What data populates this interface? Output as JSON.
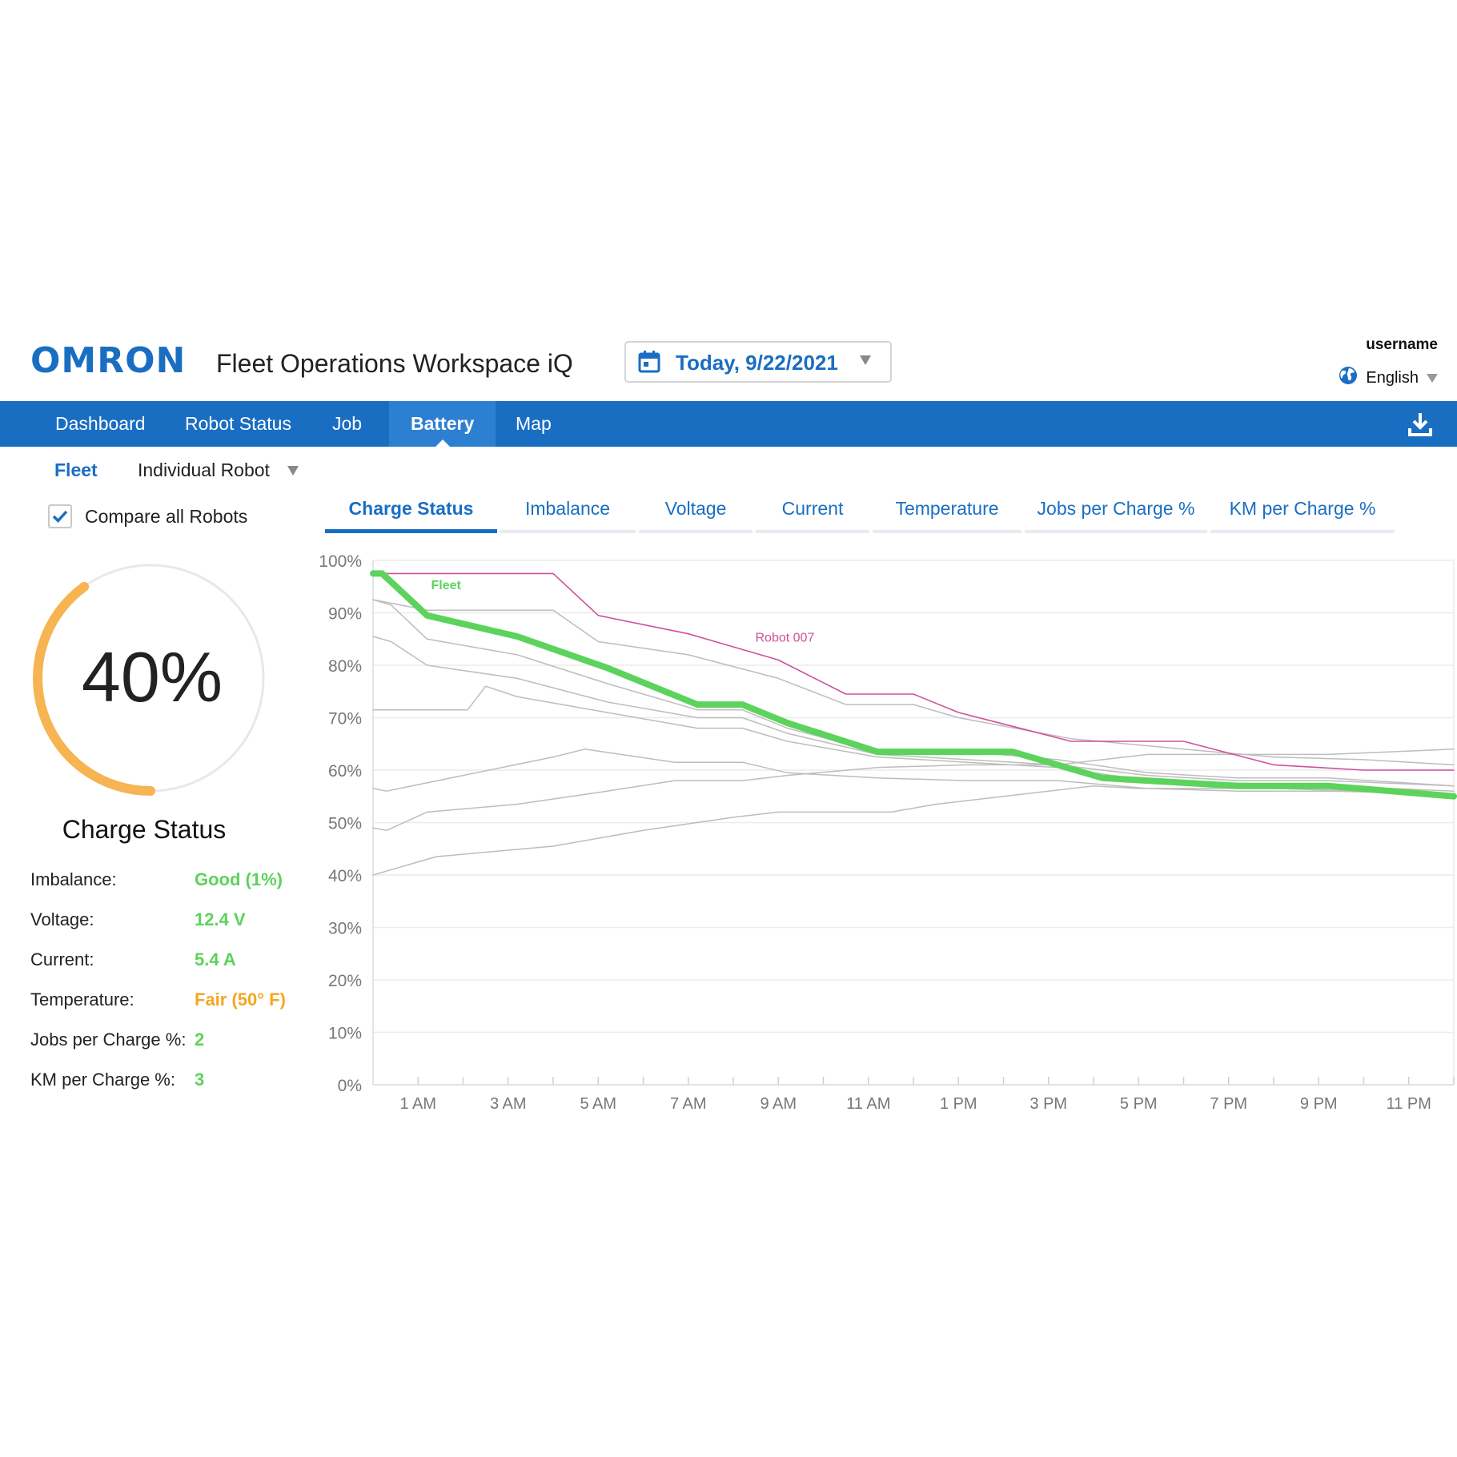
{
  "header": {
    "logo": "OMRON",
    "app_title": "Fleet Operations Workspace iQ",
    "date": "Today, 9/22/2021",
    "username": "username",
    "language": "English"
  },
  "nav": {
    "items": [
      "Dashboard",
      "Robot Status",
      "Job",
      "Battery",
      "Map"
    ],
    "active": "Battery"
  },
  "scope": {
    "fleet": "Fleet",
    "individual": "Individual Robot"
  },
  "compare": {
    "label": "Compare all Robots",
    "checked": true
  },
  "metric_tabs": {
    "items": [
      "Charge Status",
      "Imbalance",
      "Voltage",
      "Current",
      "Temperature",
      "Jobs per Charge %",
      "KM per Charge %"
    ],
    "active": "Charge Status"
  },
  "gauge": {
    "value": "40%",
    "fraction": 0.4,
    "label": "Charge Status",
    "color": "#f7b452"
  },
  "stats": [
    {
      "label": "Imbalance:",
      "value": "Good (1%)",
      "color": "#5cd35c"
    },
    {
      "label": "Voltage:",
      "value": "12.4 V",
      "color": "#5cd35c"
    },
    {
      "label": "Current:",
      "value": "5.4 A",
      "color": "#5cd35c"
    },
    {
      "label": "Temperature:",
      "value": "Fair (50° F)",
      "color": "#f5a623"
    },
    {
      "label": "Jobs per Charge %:",
      "value": "2",
      "color": "#5cd35c"
    },
    {
      "label": "KM per Charge %:",
      "value": "3",
      "color": "#5cd35c"
    }
  ],
  "colors": {
    "brand": "#1a6ec2",
    "fleet": "#5cd35c",
    "highlight": "#d0509a",
    "other": "#bdbdbd"
  },
  "chart_data": {
    "type": "line",
    "ylim": [
      0,
      100
    ],
    "xlim": [
      0,
      24
    ],
    "y_ticks": [
      "0%",
      "10%",
      "20%",
      "30%",
      "40%",
      "50%",
      "60%",
      "70%",
      "80%",
      "90%",
      "100%"
    ],
    "x_ticks": [
      "1 AM",
      "3 AM",
      "5 AM",
      "7 AM",
      "9 AM",
      "11 AM",
      "1 PM",
      "3 PM",
      "5 PM",
      "7 PM",
      "9 PM",
      "11 PM"
    ],
    "x_tick_hours": [
      1,
      3,
      5,
      7,
      9,
      11,
      13,
      15,
      17,
      19,
      21,
      23
    ],
    "grid": true,
    "series": [
      {
        "name": "Fleet",
        "role": "fleet",
        "x": [
          0,
          0.2,
          1.2,
          3.2,
          5.2,
          7.2,
          8.2,
          9.2,
          11.2,
          12.2,
          14.2,
          16.2,
          17.2,
          19.2,
          21.2,
          24
        ],
        "y": [
          97.5,
          97.5,
          89.5,
          85.5,
          79.5,
          72.5,
          72.5,
          69,
          63.5,
          63.5,
          63.5,
          58.5,
          58,
          57,
          57,
          55
        ]
      },
      {
        "name": "Robot 007",
        "role": "highlight",
        "x": [
          0.2,
          1.2,
          4.0,
          5.0,
          7.0,
          9.0,
          10.5,
          12.0,
          13.0,
          15.5,
          18.0,
          20.0,
          22.0,
          24.0
        ],
        "y": [
          97.5,
          97.5,
          97.5,
          89.5,
          86,
          81,
          74.5,
          74.5,
          71,
          65.5,
          65.5,
          61,
          60,
          60
        ]
      },
      {
        "role": "other",
        "x": [
          0,
          1.2,
          4.0,
          5.0,
          7.0,
          9.0,
          10.5,
          12.0,
          13.0,
          15.5,
          18.0,
          20.0,
          22.0,
          24.0
        ],
        "y": [
          92.5,
          90.5,
          90.5,
          84.5,
          82,
          77.5,
          72.5,
          72.5,
          70,
          66,
          64,
          62.5,
          62,
          61
        ]
      },
      {
        "role": "other",
        "x": [
          0,
          0.4,
          1.2,
          3.2,
          5.2,
          7.2,
          8.2,
          9.2,
          11.2,
          13.2,
          15.2,
          17.2,
          19.2,
          21.2,
          24
        ],
        "y": [
          92.5,
          91.5,
          85,
          82,
          76.5,
          71.5,
          71.5,
          68,
          63.5,
          63.5,
          62,
          59.5,
          58.5,
          58.5,
          57
        ]
      },
      {
        "role": "other",
        "x": [
          0,
          0.4,
          1.2,
          3.2,
          5.2,
          7.2,
          8.2,
          9.2,
          11.2,
          13.2,
          15.2,
          17.2,
          19.2,
          21.2,
          24
        ],
        "y": [
          85.5,
          84.5,
          80,
          77.5,
          73,
          70,
          70,
          67,
          63,
          62,
          61,
          59,
          58,
          58,
          57
        ]
      },
      {
        "role": "other",
        "x": [
          0,
          2.1,
          2.5,
          3.2,
          5.2,
          7.2,
          8.2,
          9.2,
          11.2,
          13.2,
          15.2,
          17.2,
          19.2,
          21.2,
          24
        ],
        "y": [
          71.5,
          71.5,
          76,
          74,
          71,
          68,
          68,
          65.5,
          62.5,
          61.5,
          60.5,
          58,
          57.5,
          57,
          56
        ]
      },
      {
        "role": "other",
        "x": [
          0,
          0.3,
          2.0,
          4.0,
          4.7,
          6.7,
          8.2,
          9.2,
          11.2,
          13.2,
          15.2,
          17.2,
          19.2,
          21.2,
          24
        ],
        "y": [
          56.5,
          56,
          59,
          62.5,
          64,
          61.5,
          61.5,
          59.5,
          58.5,
          58,
          58,
          56.5,
          56,
          56,
          55.5
        ]
      },
      {
        "role": "other",
        "x": [
          0,
          0.3,
          1.2,
          3.2,
          5.2,
          6.7,
          8.2,
          9.2,
          11.2,
          13.2,
          15.2,
          16.2,
          17.2,
          19.2,
          21.2,
          24
        ],
        "y": [
          49,
          48.5,
          52,
          53.5,
          56,
          58,
          58,
          59,
          60.5,
          61,
          61,
          62,
          63,
          63,
          63,
          64
        ]
      },
      {
        "role": "other",
        "x": [
          0,
          1.4,
          4.0,
          6.0,
          8.0,
          9.0,
          11.5,
          12.5,
          16.0,
          17.0,
          20.0,
          24.0
        ],
        "y": [
          40,
          43.5,
          45.5,
          48.5,
          51,
          52,
          52,
          53.5,
          57,
          56.5,
          56.5,
          55.5
        ]
      }
    ],
    "annotations": [
      {
        "text": "Fleet",
        "x": 1.2,
        "y": 94.5,
        "role": "fleet"
      },
      {
        "text": "Robot 007",
        "x": 8.4,
        "y": 84.5,
        "role": "highlight"
      }
    ]
  }
}
